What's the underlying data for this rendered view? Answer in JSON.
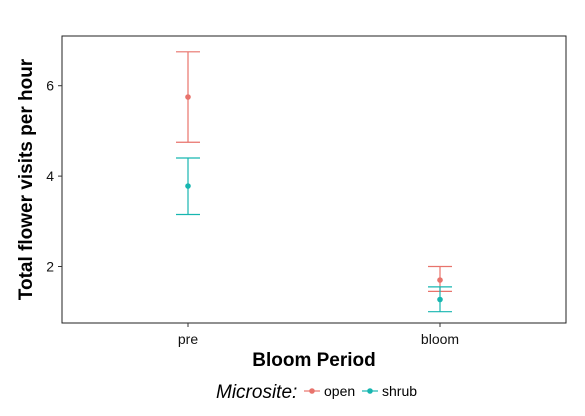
{
  "chart_data": {
    "type": "scatter",
    "xlabel": "Bloom Period",
    "ylabel": "Total flower visits per hour",
    "categories": [
      "pre",
      "bloom"
    ],
    "ylim": [
      0.75,
      7.1
    ],
    "yticks": [
      2,
      4,
      6
    ],
    "grid": false,
    "legend_position": "bottom",
    "legend_title": "Microsite:",
    "series": [
      {
        "name": "open",
        "color": "#e8736c",
        "values": [
          5.75,
          1.7
        ],
        "error_low": [
          4.75,
          1.45
        ],
        "error_high": [
          6.75,
          2.0
        ]
      },
      {
        "name": "shrub",
        "color": "#17b6b0",
        "values": [
          3.78,
          1.27
        ],
        "error_low": [
          3.15,
          1.0
        ],
        "error_high": [
          4.4,
          1.55
        ]
      }
    ]
  }
}
